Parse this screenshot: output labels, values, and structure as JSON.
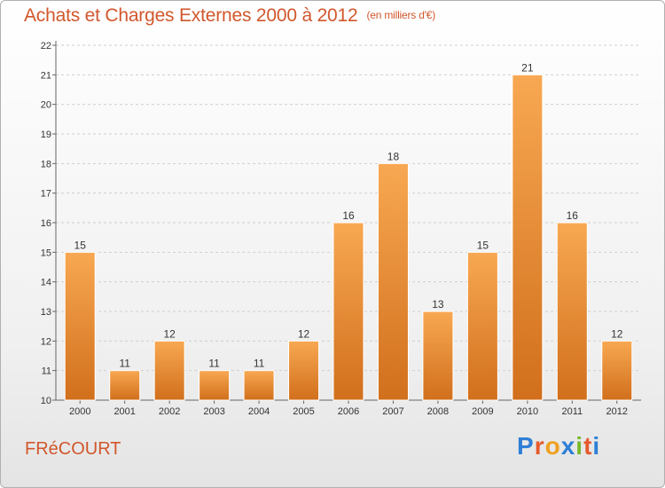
{
  "header": {
    "title": "Achats et Charges Externes 2000 à 2012",
    "unit": "(en milliers d'€)"
  },
  "footer": {
    "commune": "FRéCOURT",
    "brand_letters": [
      "P",
      "r",
      "o",
      "x",
      "i",
      "t",
      "i"
    ],
    "brand_colors": [
      "#2e7fd6",
      "#e65a2c",
      "#f0a020",
      "#2e7fd6",
      "#78b82a",
      "#e65a2c",
      "#2e7fd6"
    ]
  },
  "colors": {
    "bar_top": "#f8a852",
    "bar_bottom": "#d16f1c",
    "title": "#d1572c"
  },
  "chart_data": {
    "type": "bar",
    "categories": [
      "2000",
      "2001",
      "2002",
      "2003",
      "2004",
      "2005",
      "2006",
      "2007",
      "2008",
      "2009",
      "2010",
      "2011",
      "2012"
    ],
    "values": [
      15,
      11,
      12,
      11,
      11,
      12,
      16,
      18,
      13,
      15,
      21,
      16,
      12
    ],
    "ylim": [
      10,
      22
    ],
    "yticks": [
      "10",
      "11",
      "12",
      "13",
      "14",
      "15",
      "16",
      "17",
      "18",
      "19",
      "20",
      "21",
      "22"
    ],
    "grid": true
  }
}
